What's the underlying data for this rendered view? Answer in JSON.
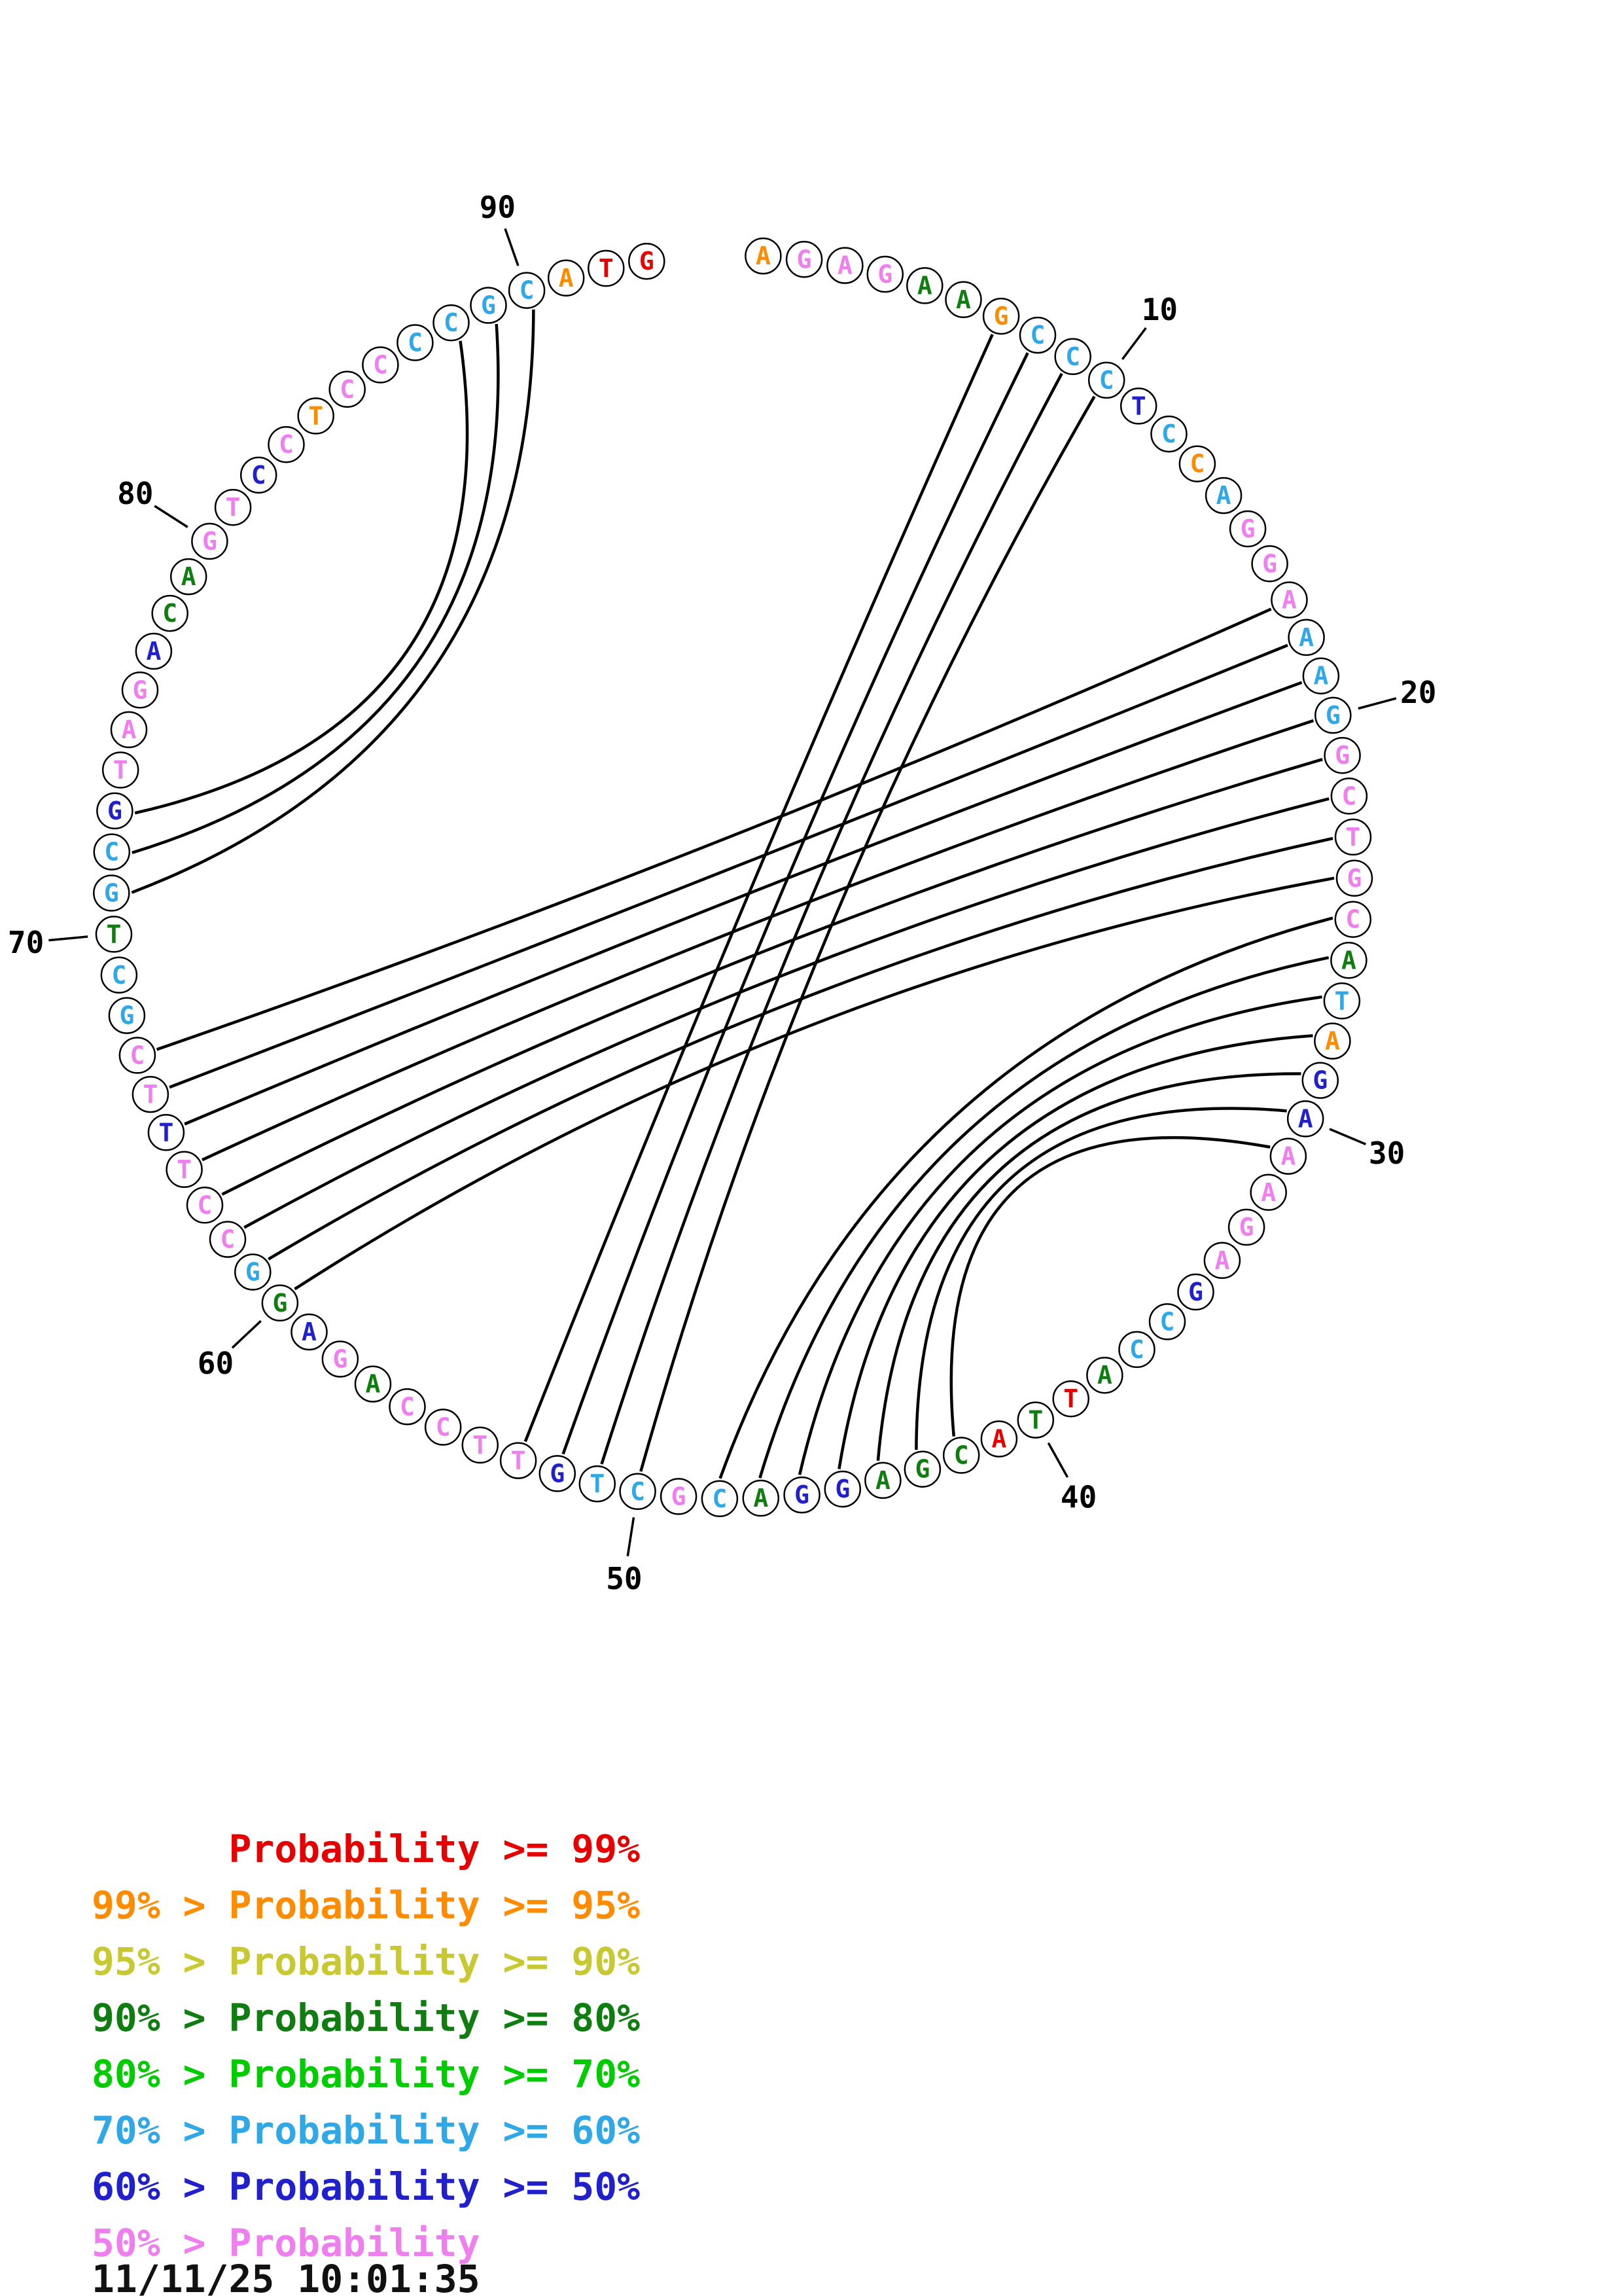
{
  "plot": {
    "bases": "AGAGAAGCCCTCCAGGAAAGGCTGCATAGAAAGAGCCATTACGAGGACGCTGTTCCAGAGGCCTTTCGCTGCGTAGACAGTCCTCCCCGCATG",
    "colors": [
      "orange",
      "pink",
      "pink",
      "pink",
      "darkgreen",
      "darkgreen",
      "orange",
      "cyan",
      "cyan",
      "cyan",
      "blue",
      "cyan",
      "orange",
      "cyan",
      "pink",
      "pink",
      "pink",
      "cyan",
      "cyan",
      "cyan",
      "pink",
      "pink",
      "pink",
      "pink",
      "pink",
      "darkgreen",
      "cyan",
      "orange",
      "blue",
      "blue",
      "pink",
      "pink",
      "pink",
      "pink",
      "blue",
      "cyan",
      "cyan",
      "darkgreen",
      "red",
      "darkgreen",
      "red",
      "darkgreen",
      "darkgreen",
      "darkgreen",
      "blue",
      "blue",
      "darkgreen",
      "cyan",
      "pink",
      "cyan",
      "cyan",
      "blue",
      "pink",
      "pink",
      "pink",
      "pink",
      "darkgreen",
      "pink",
      "blue",
      "darkgreen",
      "cyan",
      "pink",
      "pink",
      "pink",
      "blue",
      "pink",
      "pink",
      "cyan",
      "cyan",
      "darkgreen",
      "cyan",
      "cyan",
      "blue",
      "pink",
      "pink",
      "pink",
      "blue",
      "darkgreen",
      "darkgreen",
      "pink",
      "pink",
      "blue",
      "pink",
      "orange",
      "pink",
      "pink",
      "cyan",
      "cyan",
      "cyan",
      "cyan",
      "orange",
      "red",
      "red"
    ],
    "pairs": [
      [
        71,
        90
      ],
      [
        72,
        89
      ],
      [
        73,
        88
      ],
      [
        7,
        53
      ],
      [
        8,
        52
      ],
      [
        9,
        51
      ],
      [
        10,
        50
      ],
      [
        17,
        67
      ],
      [
        18,
        66
      ],
      [
        19,
        65
      ],
      [
        20,
        64
      ],
      [
        21,
        63
      ],
      [
        22,
        62
      ],
      [
        23,
        61
      ],
      [
        24,
        60
      ],
      [
        25,
        48
      ],
      [
        26,
        47
      ],
      [
        27,
        46
      ],
      [
        28,
        45
      ],
      [
        29,
        44
      ],
      [
        30,
        43
      ],
      [
        31,
        42
      ]
    ],
    "tick_labels": [
      10,
      20,
      30,
      40,
      50,
      60,
      70,
      80,
      90
    ]
  },
  "palette": {
    "red": "#e60000",
    "orange": "#ff8c00",
    "yellow": "#c8c832",
    "darkgreen": "#0f7d0f",
    "green": "#00cc00",
    "cyan": "#30a8e8",
    "blue": "#2020cc",
    "pink": "#ef7fef"
  },
  "legend": {
    "items": [
      {
        "text": "      Probability >= 99%",
        "color": "red"
      },
      {
        "text": "99% > Probability >= 95%",
        "color": "orange"
      },
      {
        "text": "95% > Probability >= 90%",
        "color": "yellow"
      },
      {
        "text": "90% > Probability >= 80%",
        "color": "darkgreen"
      },
      {
        "text": "80% > Probability >= 70%",
        "color": "green"
      },
      {
        "text": "70% > Probability >= 60%",
        "color": "cyan"
      },
      {
        "text": "60% > Probability >= 50%",
        "color": "blue"
      },
      {
        "text": "50% > Probability",
        "color": "pink"
      }
    ]
  },
  "timestamp": "11/11/25 10:01:35"
}
